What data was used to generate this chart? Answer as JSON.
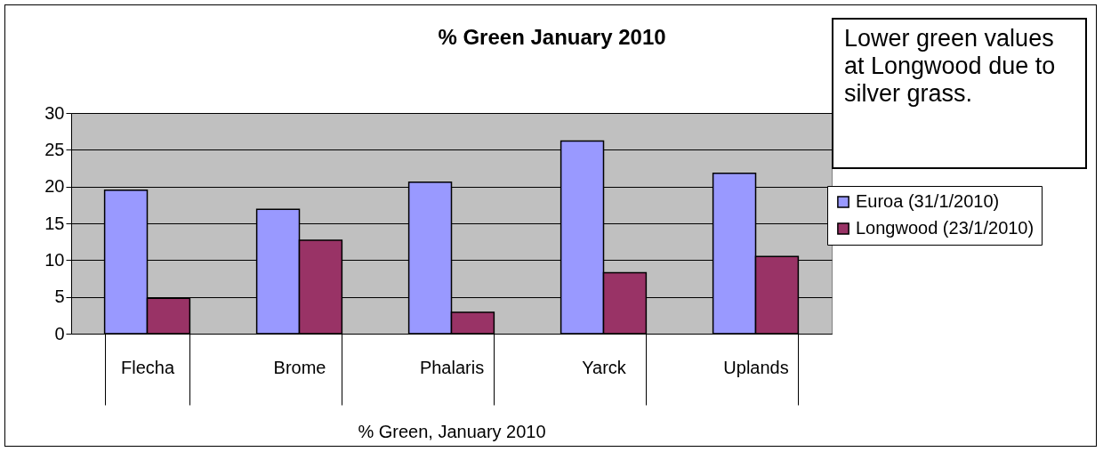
{
  "chart_data": {
    "type": "bar",
    "title": "% Green January 2010",
    "xlabel": "% Green, January 2010",
    "categories": [
      "Flecha",
      "Brome",
      "Phalaris",
      "Yarck",
      "Uplands"
    ],
    "series": [
      {
        "name": "Euroa (31/1/2010)",
        "color": "#9999ff",
        "values": [
          19.5,
          16.9,
          20.6,
          26.2,
          21.8
        ]
      },
      {
        "name": "Longwood (23/1/2010)",
        "color": "#993366",
        "values": [
          4.8,
          12.7,
          2.9,
          8.3,
          10.5
        ]
      }
    ],
    "ylim": [
      0,
      30
    ],
    "yticks": [
      0,
      5,
      10,
      15,
      20,
      25,
      30
    ],
    "grid": "y",
    "legend": "right",
    "annotations": [
      "Lower green values at Longwood due to silver grass."
    ]
  }
}
